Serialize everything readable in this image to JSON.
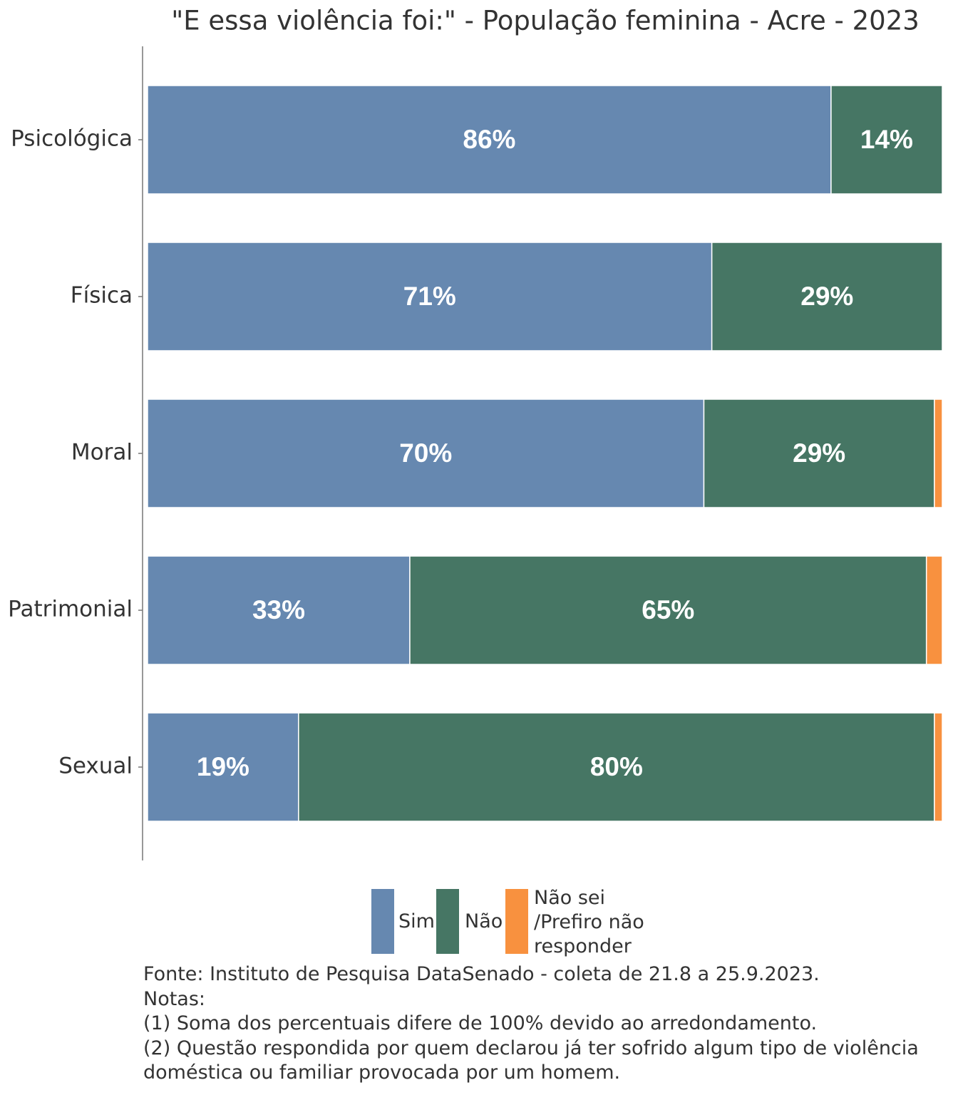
{
  "chart_data": {
    "type": "stacked_bar_horizontal",
    "title": "\"E essa violência foi:\" - População feminina - Acre - 2023",
    "categories": [
      "Psicológica",
      "Física",
      "Moral",
      "Patrimonial",
      "Sexual"
    ],
    "xlim": [
      0,
      100
    ],
    "series": [
      {
        "name": "Sim",
        "color": "#6688b0",
        "values": [
          86,
          71,
          70,
          33,
          19
        ],
        "value_labels": [
          "86%",
          "71%",
          "70%",
          "33%",
          "19%"
        ]
      },
      {
        "name": "Não",
        "color": "#467664",
        "values": [
          14,
          29,
          29,
          65,
          80
        ],
        "value_labels": [
          "14%",
          "29%",
          "29%",
          "65%",
          "80%"
        ]
      },
      {
        "name": "Não sei /Prefiro não responder",
        "color": "#f8913f",
        "values": [
          0,
          0,
          1,
          2,
          1
        ]
      }
    ],
    "source": "Fonte: Instituto de Pesquisa DataSenado - coleta de 21.8 a 25.9.2023.",
    "notes_title": "Notas:",
    "notes": [
      "(1) Soma dos percentuais difere de 100% devido ao arredondamento.",
      "(2) Questão respondida por quem declarou já ter sofrido algum tipo de violência doméstica ou familiar provocada por um homem."
    ]
  }
}
